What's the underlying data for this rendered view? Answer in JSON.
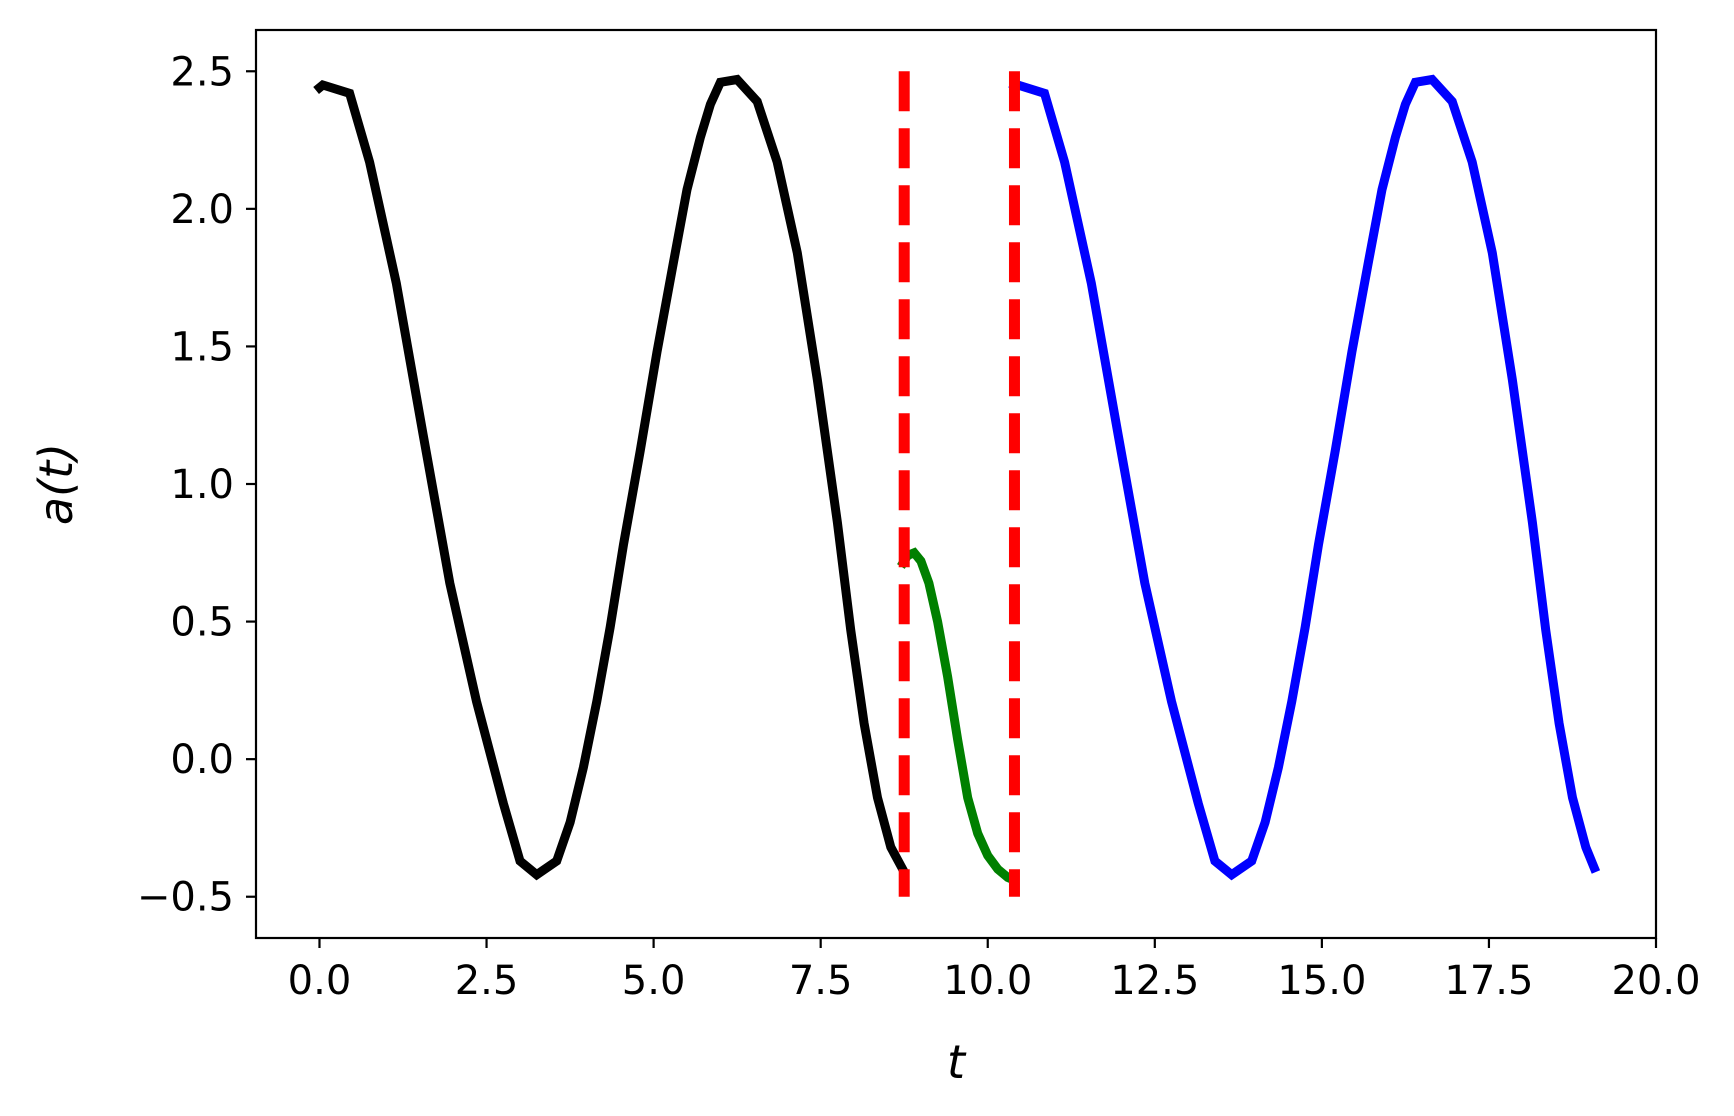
{
  "chart_data": {
    "type": "line",
    "title": "",
    "xlabel": "t",
    "ylabel": "a(t)",
    "xlim": [
      -0.95,
      20.0
    ],
    "ylim": [
      -0.65,
      2.65
    ],
    "xticks": [
      0.0,
      2.5,
      5.0,
      7.5,
      10.0,
      12.5,
      15.0,
      17.5,
      20.0
    ],
    "xtick_labels": [
      "0.0",
      "2.5",
      "5.0",
      "7.5",
      "10.0",
      "12.5",
      "15.0",
      "17.5",
      "20.0"
    ],
    "yticks": [
      -0.5,
      0.0,
      0.5,
      1.0,
      1.5,
      2.0,
      2.5
    ],
    "ytick_labels": [
      "−0.5",
      "0.0",
      "0.5",
      "1.0",
      "1.5",
      "2.0",
      "2.5"
    ],
    "grid": false,
    "legend": "none",
    "vlines": [
      {
        "x": 8.75,
        "ymin": -0.5,
        "ymax": 2.5,
        "color": "#ff0000",
        "style": "dashed"
      },
      {
        "x": 10.4,
        "ymin": -0.5,
        "ymax": 2.5,
        "color": "#ff0000",
        "style": "dashed"
      }
    ],
    "series": [
      {
        "color": "#000000",
        "x": [
          -0.05,
          0.05,
          0.45,
          0.75,
          1.15,
          1.55,
          1.95,
          2.35,
          2.75,
          3.0,
          3.25,
          3.55,
          3.75,
          3.95,
          4.15,
          4.35,
          4.55,
          4.8,
          5.05,
          5.3,
          5.5,
          5.7,
          5.85,
          6.0,
          6.25,
          6.55,
          6.85,
          7.15,
          7.45,
          7.75,
          7.95,
          8.15,
          8.35,
          8.55,
          8.75
        ],
        "y": [
          2.43,
          2.45,
          2.42,
          2.17,
          1.73,
          1.18,
          0.64,
          0.21,
          -0.16,
          -0.37,
          -0.42,
          -0.37,
          -0.23,
          -0.03,
          0.21,
          0.48,
          0.78,
          1.12,
          1.48,
          1.81,
          2.07,
          2.26,
          2.38,
          2.46,
          2.47,
          2.39,
          2.17,
          1.84,
          1.38,
          0.86,
          0.47,
          0.13,
          -0.14,
          -0.32,
          -0.41
        ]
      },
      {
        "color": "#008000",
        "x": [
          8.7,
          8.8,
          8.9,
          9.0,
          9.12,
          9.25,
          9.4,
          9.55,
          9.7,
          9.85,
          10.0,
          10.15,
          10.3,
          10.4
        ],
        "y": [
          0.7,
          0.74,
          0.75,
          0.72,
          0.64,
          0.5,
          0.3,
          0.07,
          -0.14,
          -0.27,
          -0.35,
          -0.4,
          -0.43,
          -0.44
        ]
      },
      {
        "color": "#0000ff",
        "x": [
          10.35,
          10.45,
          10.85,
          11.15,
          11.55,
          11.95,
          12.35,
          12.75,
          13.15,
          13.4,
          13.65,
          13.95,
          14.15,
          14.35,
          14.55,
          14.75,
          14.95,
          15.2,
          15.45,
          15.7,
          15.9,
          16.1,
          16.25,
          16.4,
          16.65,
          16.95,
          17.25,
          17.55,
          17.85,
          18.15,
          18.35,
          18.55,
          18.75,
          18.95,
          19.1
        ],
        "y": [
          2.43,
          2.45,
          2.42,
          2.17,
          1.73,
          1.18,
          0.64,
          0.21,
          -0.16,
          -0.37,
          -0.42,
          -0.37,
          -0.23,
          -0.03,
          0.21,
          0.48,
          0.78,
          1.12,
          1.48,
          1.81,
          2.07,
          2.26,
          2.38,
          2.46,
          2.47,
          2.39,
          2.17,
          1.84,
          1.38,
          0.86,
          0.47,
          0.13,
          -0.14,
          -0.32,
          -0.41
        ]
      }
    ]
  }
}
